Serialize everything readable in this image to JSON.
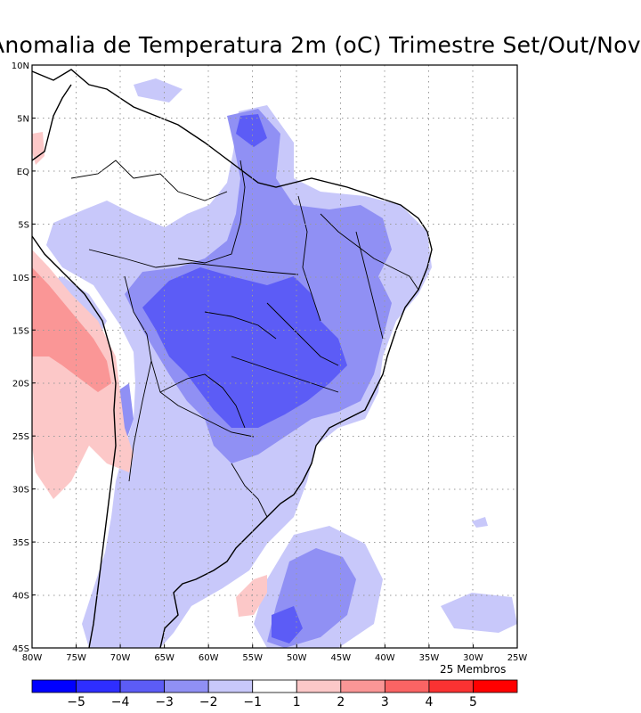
{
  "title": "Anomalia de Temperatura 2m (oC) Trimestre Set/Out/Nov",
  "members_label": "25 Membros",
  "map": {
    "lon_range": [
      -80,
      -25
    ],
    "lat_range": [
      -45,
      10
    ],
    "lon_ticks": [
      "80W",
      "75W",
      "70W",
      "65W",
      "60W",
      "55W",
      "50W",
      "45W",
      "40W",
      "35W",
      "30W",
      "25W"
    ],
    "lat_ticks": [
      "10N",
      "5N",
      "EQ",
      "5S",
      "10S",
      "15S",
      "20S",
      "25S",
      "30S",
      "35S",
      "40S",
      "45S"
    ],
    "grid": true
  },
  "legend": {
    "levels": [
      -5,
      -4,
      -3,
      -2,
      -1,
      1,
      2,
      3,
      4,
      5
    ],
    "labels": [
      "-5",
      "-4",
      "-3",
      "-2",
      "-1",
      "1",
      "2",
      "3",
      "4",
      "5"
    ],
    "colors": [
      "#0000ff",
      "#2e2eff",
      "#5c5cf6",
      "#9090f4",
      "#c8c8fa",
      "#ffffff",
      "#fcc8c8",
      "#fa9696",
      "#fa6464",
      "#fa3232",
      "#ff0000"
    ]
  }
}
